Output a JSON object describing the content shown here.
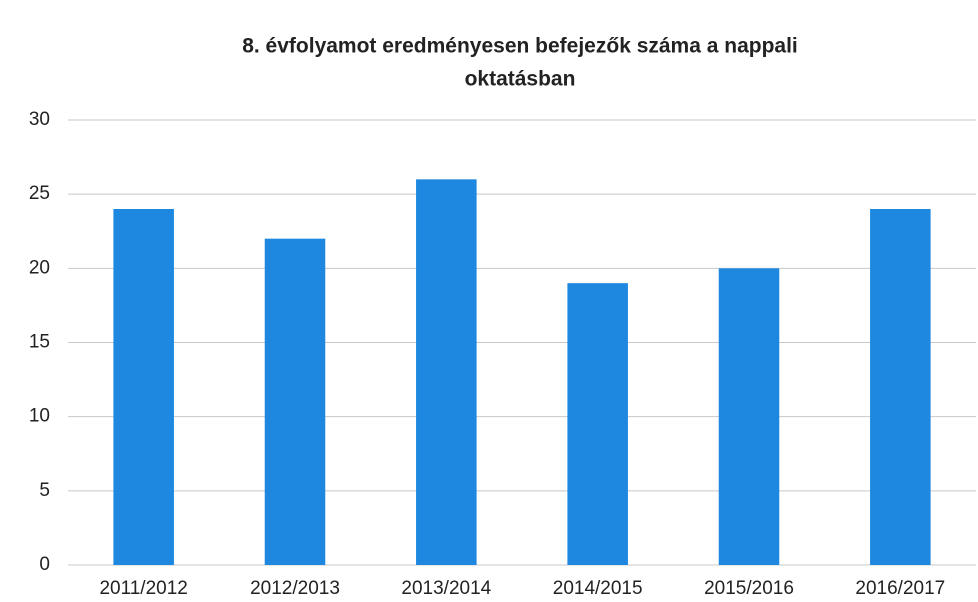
{
  "chart_data": {
    "type": "bar",
    "title": [
      "8. évfolyamot eredményesen befejezők száma  a nappali",
      "oktatásban"
    ],
    "categories": [
      "2011/2012",
      "2012/2013",
      "2013/2014",
      "2014/2015",
      "2015/2016",
      "2016/2017"
    ],
    "values": [
      24,
      22,
      26,
      19,
      20,
      24
    ],
    "color": "#1e88e0",
    "ylim": [
      0,
      30
    ],
    "yticks": [
      0,
      5,
      10,
      15,
      20,
      25,
      30
    ],
    "grid": true
  }
}
